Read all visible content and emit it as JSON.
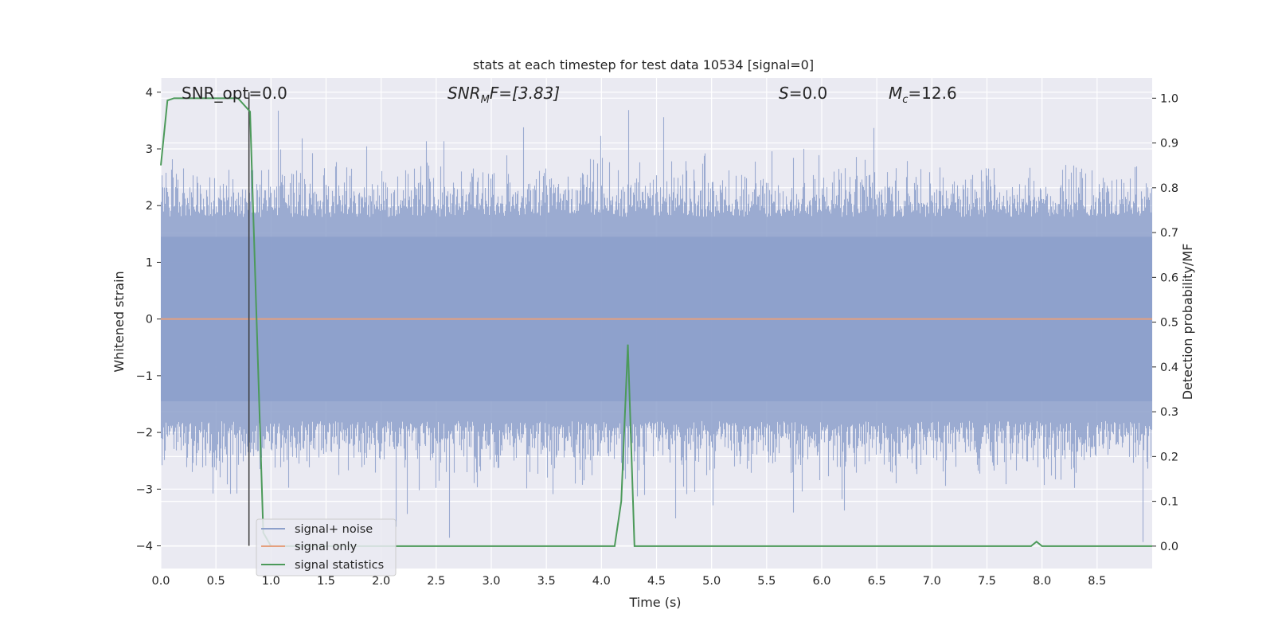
{
  "chart_data": {
    "type": "line",
    "title": "stats at each timestep for test data 10534 [signal=0]",
    "xlabel": "Time (s)",
    "ylabel_left": "Whitened strain",
    "ylabel_right": "Detection probability/MF",
    "xlim": [
      0.0,
      9.0
    ],
    "ylim_left": [
      -4.4,
      4.25
    ],
    "ylim_right": [
      -0.05,
      1.045
    ],
    "x_ticks": [
      "0.0",
      "0.5",
      "1.0",
      "1.5",
      "2.0",
      "2.5",
      "3.0",
      "3.5",
      "4.0",
      "4.5",
      "5.0",
      "5.5",
      "6.0",
      "6.5",
      "7.0",
      "7.5",
      "8.0",
      "8.5"
    ],
    "y_ticks_left": [
      "4",
      "3",
      "2",
      "1",
      "0",
      "−1",
      "−2",
      "−3",
      "−4"
    ],
    "y_ticks_right": [
      "1.0",
      "0.9",
      "0.8",
      "0.7",
      "0.6",
      "0.5",
      "0.4",
      "0.3",
      "0.2",
      "0.1",
      "0.0"
    ],
    "grid": true,
    "legend_position": "lower-left",
    "annotations": {
      "snr_opt": "SNR_opt=0.0",
      "snr_mf_base": "SNR",
      "snr_mf_sub": "M",
      "snr_mf_rest": "F=[3.83]",
      "s_italic": "S",
      "s_rest": "=0.0",
      "mc_italic": "M",
      "mc_sub": "c",
      "mc_rest": "=12.6"
    },
    "marker_line_x": 0.8,
    "noise_envelope": {
      "typical_abs_max": 1.8,
      "peak_max": 3.85,
      "peak_min": -3.95
    },
    "series": [
      {
        "name": "signal+ noise",
        "axis": "left",
        "color": "#8da0cb",
        "description_values": "dense Gaussian-like whitened noise"
      },
      {
        "name": "signal only",
        "axis": "left",
        "color": "#e5a07e",
        "x": [
          0.0,
          9.0
        ],
        "y": [
          0.0,
          0.0
        ]
      },
      {
        "name": "signal statistics",
        "axis": "right",
        "color": "#4c9a5a",
        "x": [
          0.0,
          0.06,
          0.12,
          0.7,
          0.81,
          0.93,
          1.0,
          1.05,
          4.12,
          4.18,
          4.24,
          4.3,
          7.9,
          7.95,
          8.0,
          9.0
        ],
        "y": [
          0.85,
          0.995,
          1.0,
          1.0,
          0.97,
          0.03,
          0.0,
          0.0,
          0.0,
          0.1,
          0.45,
          0.0,
          0.0,
          0.01,
          0.0,
          0.0
        ]
      }
    ]
  }
}
